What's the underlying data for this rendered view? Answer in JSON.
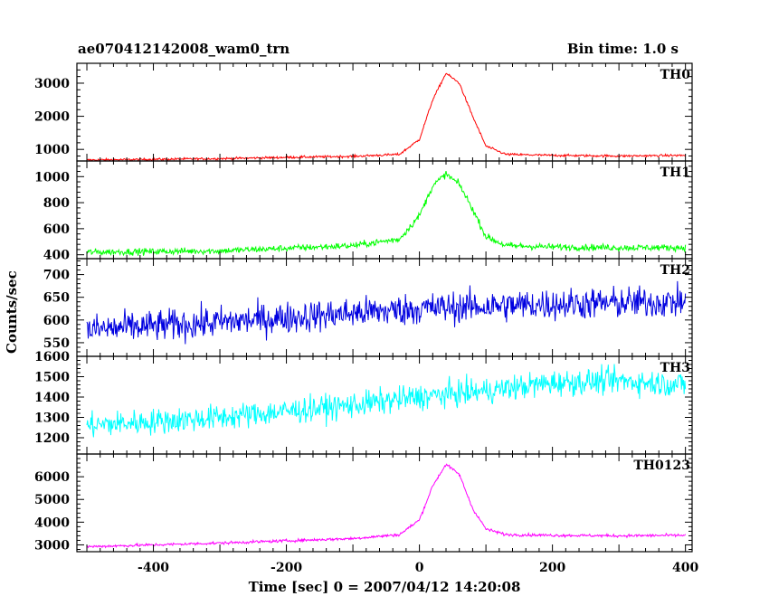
{
  "header": {
    "title_left": "ae070412142008_wam0_trn",
    "title_right": "Bin time: 1.0 s"
  },
  "chart_data": {
    "type": "line",
    "xlabel": "Time [sec] 0 = 2007/04/12 14:20:08",
    "ylabel": "Counts/sec",
    "xlim": [
      -515,
      410
    ],
    "xticks": [
      -400,
      -200,
      0,
      200,
      400
    ],
    "x_step": 1.0,
    "x_range": [
      -500,
      400
    ],
    "grid": false,
    "panels": [
      {
        "name": "TH0",
        "color": "#ff0000",
        "ylim": [
          650,
          3600
        ],
        "yticks": [
          1000,
          2000,
          3000
        ],
        "profile": [
          [
            -500,
            680
          ],
          [
            -400,
            700
          ],
          [
            -300,
            720
          ],
          [
            -200,
            760
          ],
          [
            -100,
            790
          ],
          [
            -30,
            850
          ],
          [
            0,
            1300
          ],
          [
            20,
            2500
          ],
          [
            40,
            3300
          ],
          [
            60,
            3000
          ],
          [
            80,
            2000
          ],
          [
            100,
            1100
          ],
          [
            130,
            850
          ],
          [
            200,
            820
          ],
          [
            300,
            800
          ],
          [
            400,
            820
          ]
        ],
        "noise": 25
      },
      {
        "name": "TH1",
        "color": "#00ff00",
        "ylim": [
          370,
          1120
        ],
        "yticks": [
          400,
          600,
          800,
          1000
        ],
        "profile": [
          [
            -500,
            420
          ],
          [
            -300,
            430
          ],
          [
            -200,
            450
          ],
          [
            -100,
            470
          ],
          [
            -30,
            520
          ],
          [
            0,
            700
          ],
          [
            20,
            930
          ],
          [
            40,
            1020
          ],
          [
            60,
            940
          ],
          [
            80,
            750
          ],
          [
            100,
            540
          ],
          [
            130,
            470
          ],
          [
            200,
            460
          ],
          [
            300,
            455
          ],
          [
            400,
            455
          ]
        ],
        "noise": 18
      },
      {
        "name": "TH2",
        "color": "#0000e0",
        "ylim": [
          520,
          735
        ],
        "yticks": [
          550,
          600,
          650,
          700
        ],
        "profile": [
          [
            -500,
            578
          ],
          [
            -300,
            595
          ],
          [
            -100,
            615
          ],
          [
            0,
            625
          ],
          [
            200,
            635
          ],
          [
            400,
            640
          ]
        ],
        "noise": 25
      },
      {
        "name": "TH3",
        "color": "#00ffff",
        "ylim": [
          1120,
          1600
        ],
        "yticks": [
          1200,
          1300,
          1400,
          1500,
          1600
        ],
        "profile": [
          [
            -500,
            1260
          ],
          [
            -300,
            1300
          ],
          [
            -100,
            1360
          ],
          [
            0,
            1400
          ],
          [
            100,
            1430
          ],
          [
            200,
            1470
          ],
          [
            300,
            1480
          ],
          [
            400,
            1460
          ]
        ],
        "noise": 45
      },
      {
        "name": "TH0123",
        "color": "#ff00ff",
        "ylim": [
          2700,
          7000
        ],
        "yticks": [
          3000,
          4000,
          5000,
          6000
        ],
        "profile": [
          [
            -500,
            2920
          ],
          [
            -400,
            3000
          ],
          [
            -300,
            3080
          ],
          [
            -200,
            3180
          ],
          [
            -100,
            3280
          ],
          [
            -30,
            3450
          ],
          [
            0,
            4100
          ],
          [
            20,
            5600
          ],
          [
            40,
            6550
          ],
          [
            60,
            6100
          ],
          [
            80,
            4600
          ],
          [
            100,
            3700
          ],
          [
            130,
            3450
          ],
          [
            200,
            3420
          ],
          [
            300,
            3400
          ],
          [
            400,
            3420
          ]
        ],
        "noise": 45
      }
    ]
  }
}
